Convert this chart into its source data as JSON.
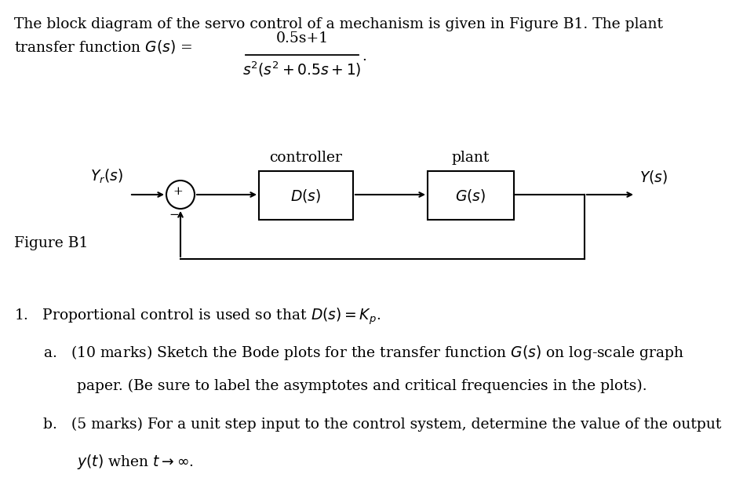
{
  "title_line1": "The block diagram of the servo control of a mechanism is given in Figure B1. The plant",
  "title_line2": "transfer function $G(s)$ =",
  "numerator": "0.5s+1",
  "denominator": "$s^2(s^2+0.5s+1)$",
  "period": ".",
  "label_Yr": "$Y_r(s)$",
  "label_Y": "$Y(s)$",
  "label_D": "$D(s)$",
  "label_G": "$G(s)$",
  "label_controller": "controller",
  "label_plant": "plant",
  "label_figure": "Figure B1",
  "plus_sign": "+",
  "minus_sign": "−",
  "item1_text": "Proportional control is used so that $D(s) = K_p$.",
  "item_a_line1": "(10 marks) Sketch the Bode plots for the transfer function $G(s)$ on log-scale graph",
  "item_a_line2": "paper. (Be sure to label the asymptotes and critical frequencies in the plots).",
  "item_b_line1": "(5 marks) For a unit step input to the control system, determine the value of the output",
  "item_b_line2": "$y(t)$ when $t \\rightarrow \\infty$.",
  "bg_color": "#ffffff",
  "text_color": "#000000",
  "box_color": "#000000",
  "fontsize": 13.5
}
